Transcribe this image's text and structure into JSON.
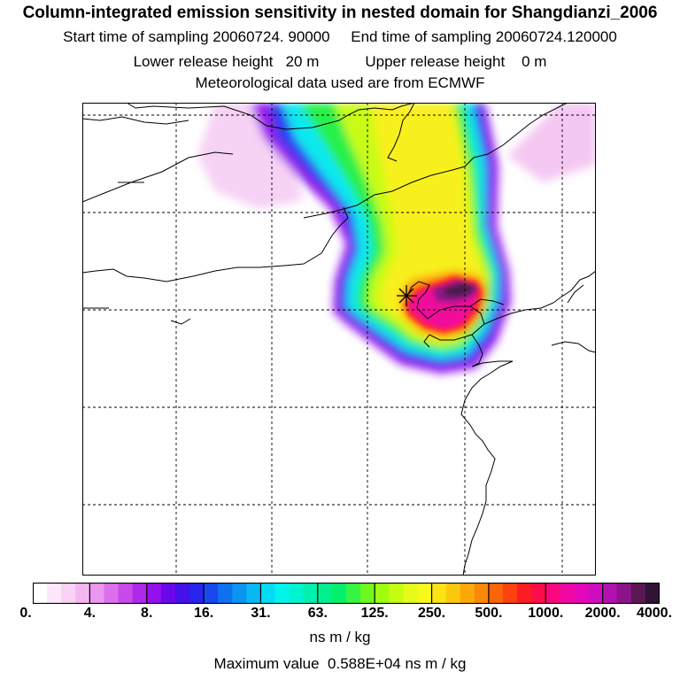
{
  "header": {
    "title": "Column-integrated emission sensitivity in nested domain for Shangdianzi_2006",
    "start_label": "Start time of sampling 20060724. 90000",
    "end_label": "End time of sampling 20060724.120000",
    "lower_label": "Lower release height",
    "lower_value": "20 m",
    "upper_label": "Upper release height",
    "upper_value": "0 m",
    "met": "Meteorological data used are from ECMWF"
  },
  "map": {
    "site_marker": "station-cross-icon"
  },
  "colorbar": {
    "tick_labels": [
      "0.",
      "4.",
      "8.",
      "16.",
      "31.",
      "63.",
      "125.",
      "250.",
      "500.",
      "1000.",
      "2000.",
      "4000."
    ],
    "colors": [
      "#ffffff",
      "#fde8fb",
      "#f9d2f6",
      "#f4b6f1",
      "#ec96ef",
      "#dc70ec",
      "#c84aea",
      "#b028ea",
      "#9410ee",
      "#6a08ec",
      "#4410ea",
      "#2824ec",
      "#1848ee",
      "#1070f0",
      "#0c94f2",
      "#08b8f4",
      "#04dcf4",
      "#00f4ec",
      "#00f4d0",
      "#00f0b0",
      "#00f090",
      "#04f06c",
      "#34f444",
      "#70f81c",
      "#a0fc10",
      "#c4fc14",
      "#e4fc18",
      "#f8f81c",
      "#fce414",
      "#fcc80c",
      "#fca808",
      "#fc8808",
      "#fc6408",
      "#fc4010",
      "#fc1c24",
      "#fc0c48",
      "#f8087c",
      "#f008a0",
      "#e408b8",
      "#d00cc0",
      "#b410b0",
      "#8c1488",
      "#5c1854",
      "#301434"
    ]
  },
  "units": "ns m / kg",
  "max_label": "Maximum value",
  "max_value": "0.588E+04 ns m / kg"
}
